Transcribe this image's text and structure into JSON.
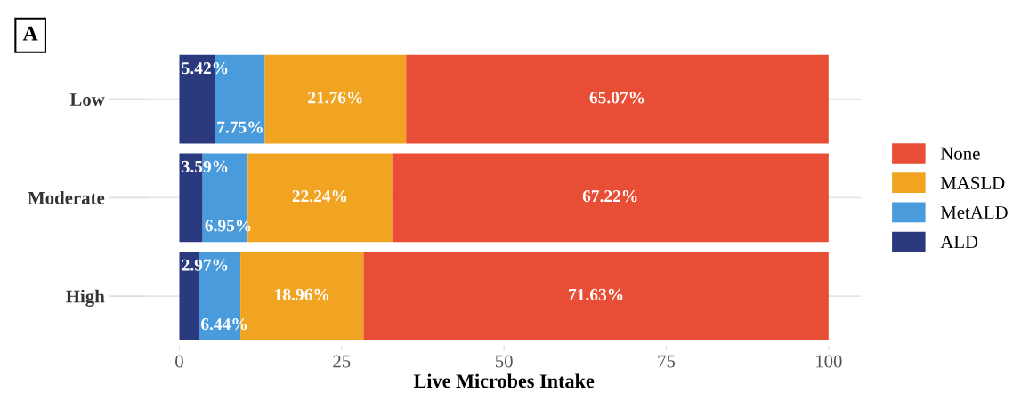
{
  "chart_data": {
    "type": "bar",
    "orientation": "horizontal",
    "stacked": true,
    "xlabel": "Live Microbes Intake",
    "categories": [
      "Low",
      "Moderate",
      "High"
    ],
    "series": [
      {
        "name": "ALD",
        "color": "#2b3a7e",
        "values": [
          5.42,
          3.59,
          2.97
        ],
        "value_labels": [
          "5.42%",
          "3.59%",
          "2.97%"
        ]
      },
      {
        "name": "MetALD",
        "color": "#4a9bdb",
        "values": [
          7.75,
          6.95,
          6.44
        ],
        "value_labels": [
          "7.75%",
          "6.95%",
          "6.44%"
        ]
      },
      {
        "name": "MASLD",
        "color": "#f0a422",
        "values": [
          21.76,
          22.24,
          18.96
        ],
        "value_labels": [
          "21.76%",
          "22.24%",
          "18.96%"
        ]
      },
      {
        "name": "None",
        "color": "#e84e35",
        "values": [
          65.07,
          67.22,
          71.63
        ],
        "value_labels": [
          "65.07%",
          "67.22%",
          "71.63%"
        ]
      }
    ],
    "xlim": [
      -5,
      105
    ],
    "xticks": [
      0,
      25,
      50,
      75,
      100
    ],
    "grid": "y",
    "legend": "right",
    "annotations": [
      "A"
    ]
  }
}
